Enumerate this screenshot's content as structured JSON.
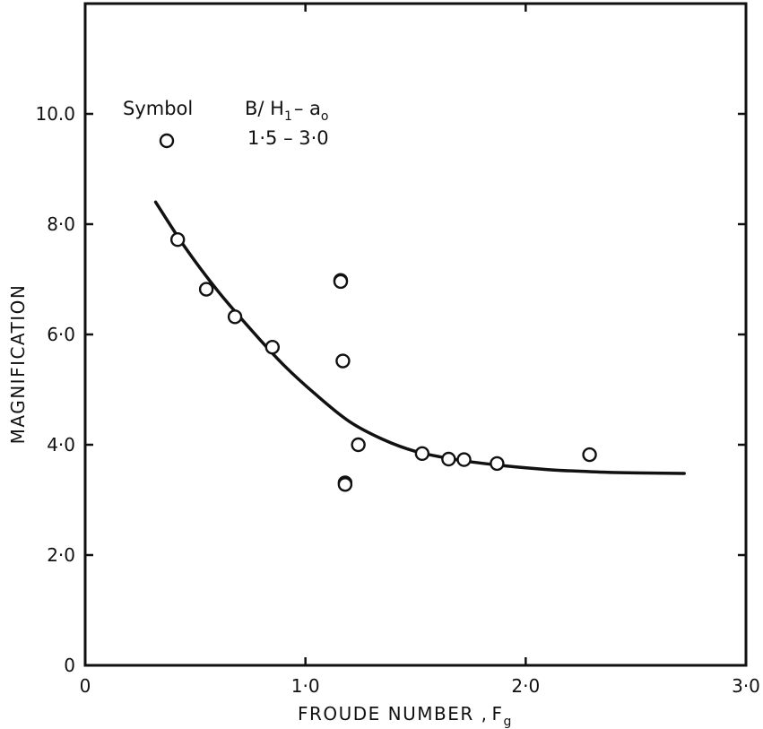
{
  "chart_data": {
    "type": "scatter",
    "xlabel": "FROUDE NUMBER ,",
    "xlabel_symbol": "F",
    "xlabel_subscript": "g",
    "ylabel": "MAGNIFICATION",
    "xlim": [
      0,
      3.0
    ],
    "ylim": [
      0,
      12.0
    ],
    "x_ticks": [
      {
        "value": 0,
        "label": "0"
      },
      {
        "value": 1.0,
        "label": "1·0"
      },
      {
        "value": 2.0,
        "label": "2·0"
      },
      {
        "value": 3.0,
        "label": "3·0"
      }
    ],
    "y_ticks": [
      {
        "value": 0,
        "label": "0"
      },
      {
        "value": 2.0,
        "label": "2·0"
      },
      {
        "value": 4.0,
        "label": "4·0"
      },
      {
        "value": 6.0,
        "label": "6·0"
      },
      {
        "value": 8.0,
        "label": "8·0"
      },
      {
        "value": 10.0,
        "label": "10.0"
      }
    ],
    "grid": false,
    "legend": {
      "placement": "top-left",
      "symbol_header": "Symbol",
      "param_main": "B/ H",
      "param_sub1": "1",
      "param_dash": "– a",
      "param_sub2": "o",
      "range": "1·5  – 3·0"
    },
    "points": [
      {
        "x": 0.42,
        "y": 7.72
      },
      {
        "x": 0.55,
        "y": 6.82
      },
      {
        "x": 0.68,
        "y": 6.32
      },
      {
        "x": 0.85,
        "y": 5.77
      },
      {
        "x": 1.16,
        "y": 6.98
      },
      {
        "x": 1.16,
        "y": 6.96
      },
      {
        "x": 1.17,
        "y": 5.52
      },
      {
        "x": 1.18,
        "y": 3.31
      },
      {
        "x": 1.18,
        "y": 3.28
      },
      {
        "x": 1.24,
        "y": 4.0
      },
      {
        "x": 1.53,
        "y": 3.84
      },
      {
        "x": 1.65,
        "y": 3.74
      },
      {
        "x": 1.72,
        "y": 3.73
      },
      {
        "x": 1.87,
        "y": 3.66
      },
      {
        "x": 2.29,
        "y": 3.82
      }
    ],
    "curve": [
      {
        "x": 0.32,
        "y": 8.4
      },
      {
        "x": 0.45,
        "y": 7.6
      },
      {
        "x": 0.6,
        "y": 6.8
      },
      {
        "x": 0.75,
        "y": 6.1
      },
      {
        "x": 0.9,
        "y": 5.45
      },
      {
        "x": 1.05,
        "y": 4.9
      },
      {
        "x": 1.2,
        "y": 4.42
      },
      {
        "x": 1.35,
        "y": 4.1
      },
      {
        "x": 1.5,
        "y": 3.88
      },
      {
        "x": 1.7,
        "y": 3.72
      },
      {
        "x": 1.9,
        "y": 3.62
      },
      {
        "x": 2.1,
        "y": 3.55
      },
      {
        "x": 2.3,
        "y": 3.51
      },
      {
        "x": 2.5,
        "y": 3.49
      },
      {
        "x": 2.72,
        "y": 3.48
      }
    ]
  }
}
